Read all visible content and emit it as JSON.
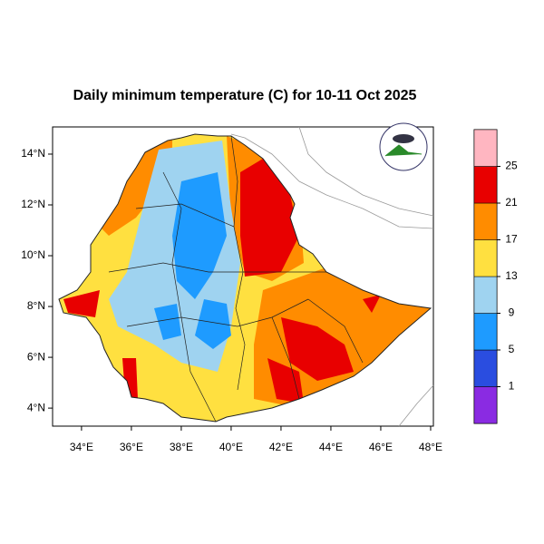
{
  "title": "Daily minimum temperature (C) for 10-11 Oct 2025",
  "map": {
    "xlim": [
      32.84,
      48.11
    ],
    "ylim": [
      3.29,
      15.07
    ],
    "xticks": [
      {
        "value": 34,
        "label": "34°E"
      },
      {
        "value": 36,
        "label": "36°E"
      },
      {
        "value": 38,
        "label": "38°E"
      },
      {
        "value": 40,
        "label": "40°E"
      },
      {
        "value": 42,
        "label": "42°E"
      },
      {
        "value": 44,
        "label": "44°E"
      },
      {
        "value": 46,
        "label": "46°E"
      },
      {
        "value": 48,
        "label": "48°E"
      }
    ],
    "yticks": [
      {
        "value": 4,
        "label": "4°N"
      },
      {
        "value": 6,
        "label": "6°N"
      },
      {
        "value": 8,
        "label": "8°N"
      },
      {
        "value": 10,
        "label": "10°N"
      },
      {
        "value": 12,
        "label": "12°N"
      },
      {
        "value": 14,
        "label": "14°N"
      }
    ]
  },
  "colorbar": {
    "levels": [
      1,
      5,
      9,
      13,
      17,
      21,
      25
    ],
    "colors": [
      "#8a2be2",
      "#2a4de0",
      "#1e9bff",
      "#9fd3f0",
      "#ffe040",
      "#ff8c00",
      "#e80000",
      "#ffb6c1"
    ]
  }
}
